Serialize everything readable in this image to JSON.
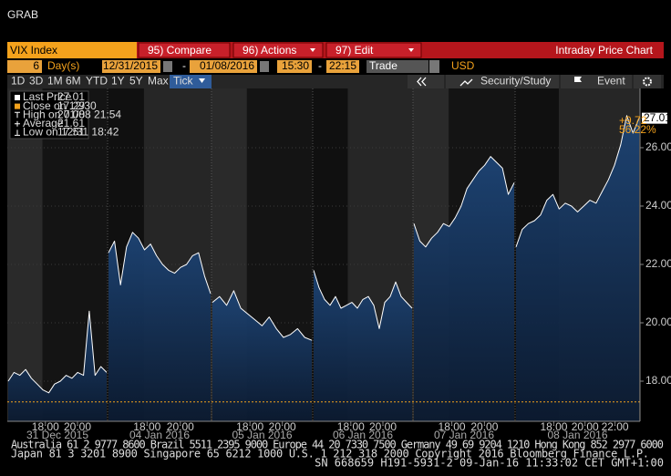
{
  "header": {
    "title": "GRAB"
  },
  "toolbar": {
    "security": "VIX Index",
    "buttons": [
      "95) Compare",
      "96) Actions",
      "97) Edit"
    ],
    "chart_title": "Intraday Price Chart"
  },
  "params": {
    "period": "6",
    "unit": "Day(s)",
    "start_date": "12/31/2015",
    "end_date": "01/08/2016",
    "start_time": "15:30",
    "end_time": "22:15",
    "field": "Trade",
    "currency": "USD"
  },
  "tabs": [
    "1D",
    "3D",
    "1M",
    "6M",
    "YTD",
    "1Y",
    "5Y",
    "Max",
    "Tick"
  ],
  "tools": [
    "Security/Study",
    "Event"
  ],
  "legend": {
    "rows": [
      {
        "label": "Last Price",
        "value": 27.01
      },
      {
        "label": "Close on 12/30",
        "value": 17.29
      },
      {
        "label": "High on 01/08 21:54",
        "value": 27.08
      },
      {
        "label": "Average",
        "value": 21.61
      },
      {
        "label": "Low on 12/31 18:42",
        "value": 17.51
      }
    ]
  },
  "chart": {
    "type": "line",
    "color": "#ffffff",
    "fill": "#17355c",
    "ylim": [
      16.625,
      28.03
    ],
    "yticks": [
      {
        "value": 18,
        "label": "18.00"
      },
      {
        "value": 20,
        "label": "20.00"
      },
      {
        "value": 22,
        "label": "22.00"
      },
      {
        "value": 24,
        "label": "24.00"
      },
      {
        "value": 26,
        "label": "26.00"
      }
    ],
    "change_label": "+9.72",
    "change_pct": "56.22%",
    "sessions": [
      {
        "date": "31 Dec 2015",
        "times": [
          "18:00",
          "20:00"
        ],
        "values": [
          18.0,
          18.3,
          18.2,
          18.4,
          18.1,
          17.9,
          17.7,
          17.6,
          17.9,
          18.0,
          18.2,
          18.1,
          18.3,
          18.2,
          20.4,
          18.2,
          18.5,
          18.3
        ]
      },
      {
        "date": "04 Jan 2016",
        "times": [
          "18:00",
          "20:00"
        ],
        "values": [
          22.4,
          22.8,
          21.3,
          22.6,
          23.1,
          22.9,
          22.5,
          22.7,
          22.3,
          22.0,
          21.8,
          21.7,
          21.9,
          22.0,
          22.3,
          22.4,
          21.6,
          21.0
        ]
      },
      {
        "date": "05 Jan 2016",
        "times": [
          "18:00",
          "20:00"
        ],
        "values": [
          20.7,
          20.9,
          20.6,
          21.1,
          20.5,
          20.3,
          20.1,
          19.9,
          20.2,
          19.8,
          19.5,
          19.6,
          19.8,
          19.5,
          19.4
        ]
      },
      {
        "date": "06 Jan 2016",
        "times": [
          "18:00",
          "20:00"
        ],
        "values": [
          21.8,
          21.2,
          20.8,
          20.6,
          20.9,
          20.5,
          20.6,
          20.7,
          20.5,
          20.8,
          20.9,
          20.6,
          19.8,
          20.7,
          20.9,
          21.4,
          20.9,
          20.7,
          20.5
        ]
      },
      {
        "date": "07 Jan 2016",
        "times": [
          "18:00",
          "20:00"
        ],
        "values": [
          23.4,
          22.8,
          22.6,
          22.9,
          23.1,
          23.4,
          23.3,
          23.6,
          24.0,
          24.6,
          24.9,
          25.2,
          25.4,
          25.7,
          25.5,
          25.3,
          24.4,
          24.8
        ]
      },
      {
        "date": "08 Jan 2016",
        "times": [
          "18:00",
          "20:00",
          "22:00"
        ],
        "values": [
          22.6,
          23.2,
          23.4,
          23.5,
          23.7,
          24.2,
          24.4,
          23.9,
          24.1,
          24.0,
          23.8,
          24.0,
          24.2,
          24.1,
          24.5,
          24.9,
          25.4,
          26.1,
          27.1,
          26.5,
          27.01
        ]
      }
    ]
  },
  "footer": [
    "Australia 61 2 9777 8600 Brazil 5511 2395 9000 Europe 44 20 7330 7500 Germany 49 69 9204 1210 Hong Kong 852 2977 6000",
    "Japan 81 3 3201 8900         Singapore 65 6212 1000         U.S. 1 212 318 2000         Copyright 2016 Bloomberg Finance L.P.",
    "SN 668659 H191-5931-2 09-Jan-16 11:33:02 CET  GMT+1:00"
  ]
}
